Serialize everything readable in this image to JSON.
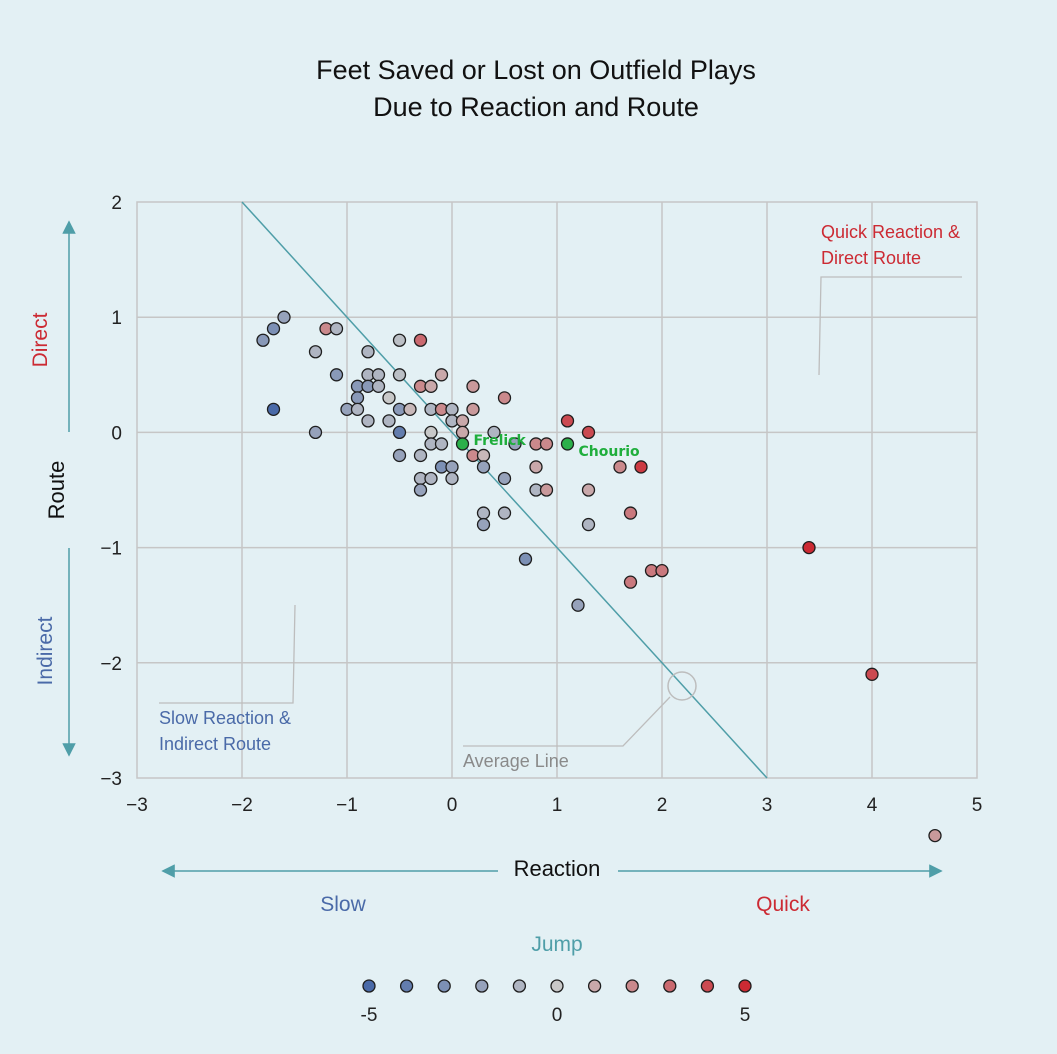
{
  "chart_data": {
    "type": "scatter",
    "title_line1": "Feet Saved or Lost on Outfield Plays",
    "title_line2": "Due to Reaction and Route",
    "xlabel": "Reaction",
    "ylabel": "Route",
    "xlim": [
      -3,
      5
    ],
    "ylim": [
      -3,
      2
    ],
    "xticks": [
      -3,
      -2,
      -1,
      0,
      1,
      2,
      3,
      4,
      5
    ],
    "yticks": [
      2,
      1,
      0,
      -1,
      -2,
      -3
    ],
    "grid": true,
    "colors": {
      "slow": "#4a6aa8",
      "quick": "#cc2a33",
      "teal": "#4f9ea8",
      "highlight": "#2bb04a",
      "grid": "#c6c6c6"
    },
    "y_pole_top": "Direct",
    "y_pole_bottom": "Indirect",
    "x_pole_left": "Slow",
    "x_pole_right": "Quick",
    "annotations": {
      "quick_line1": "Quick Reaction &",
      "quick_line2": "Direct Route",
      "slow_line1": "Slow Reaction &",
      "slow_line2": "Indirect Route",
      "average": "Average Line"
    },
    "average_line": {
      "x1": -2,
      "y1": 2,
      "x2": 3,
      "y2": -3
    },
    "legend": {
      "title": "Jump",
      "min_label": "-5",
      "mid_label": "0",
      "max_label": "5",
      "steps": [
        -5,
        -4,
        -3,
        -2,
        -1,
        0,
        1,
        2,
        3,
        4,
        5
      ]
    },
    "highlights": [
      {
        "label": "Frelick",
        "x": 0.1,
        "y": -0.1
      },
      {
        "label": "Chourio",
        "x": 1.1,
        "y": -0.1
      }
    ],
    "points": [
      {
        "x": -1.6,
        "y": 1.0,
        "jump": -2
      },
      {
        "x": -1.7,
        "y": 0.9,
        "jump": -3
      },
      {
        "x": -1.8,
        "y": 0.8,
        "jump": -2.5
      },
      {
        "x": -1.7,
        "y": 0.2,
        "jump": -5
      },
      {
        "x": -1.2,
        "y": 0.9,
        "jump": 2
      },
      {
        "x": -1.1,
        "y": 0.9,
        "jump": -1
      },
      {
        "x": -1.3,
        "y": 0.7,
        "jump": -1
      },
      {
        "x": -1.1,
        "y": 0.5,
        "jump": -2.5
      },
      {
        "x": -1.3,
        "y": 0.0,
        "jump": -2
      },
      {
        "x": -1.0,
        "y": 0.2,
        "jump": -2
      },
      {
        "x": -0.9,
        "y": 0.4,
        "jump": -2.5
      },
      {
        "x": -0.9,
        "y": 0.3,
        "jump": -2.5
      },
      {
        "x": -0.9,
        "y": 0.2,
        "jump": -1
      },
      {
        "x": -0.8,
        "y": 0.7,
        "jump": -1
      },
      {
        "x": -0.8,
        "y": 0.5,
        "jump": -1
      },
      {
        "x": -0.8,
        "y": 0.4,
        "jump": -2.5
      },
      {
        "x": -0.7,
        "y": 0.5,
        "jump": -1
      },
      {
        "x": -0.7,
        "y": 0.4,
        "jump": -1
      },
      {
        "x": -0.8,
        "y": 0.1,
        "jump": -1
      },
      {
        "x": -0.6,
        "y": 0.3,
        "jump": 0
      },
      {
        "x": -0.6,
        "y": 0.1,
        "jump": -1
      },
      {
        "x": -0.5,
        "y": 0.8,
        "jump": -0.5
      },
      {
        "x": -0.5,
        "y": 0.5,
        "jump": -0.5
      },
      {
        "x": -0.5,
        "y": 0.2,
        "jump": -2.5
      },
      {
        "x": -0.5,
        "y": 0.0,
        "jump": -4
      },
      {
        "x": -0.5,
        "y": -0.2,
        "jump": -2
      },
      {
        "x": -0.4,
        "y": 0.2,
        "jump": 0.5
      },
      {
        "x": -0.3,
        "y": 0.8,
        "jump": 3
      },
      {
        "x": -0.3,
        "y": 0.4,
        "jump": 2
      },
      {
        "x": -0.2,
        "y": 0.4,
        "jump": 1
      },
      {
        "x": -0.2,
        "y": 0.2,
        "jump": -1
      },
      {
        "x": -0.2,
        "y": 0.0,
        "jump": 0
      },
      {
        "x": -0.2,
        "y": -0.1,
        "jump": -1
      },
      {
        "x": -0.3,
        "y": -0.2,
        "jump": -1
      },
      {
        "x": -0.3,
        "y": -0.4,
        "jump": -1
      },
      {
        "x": -0.3,
        "y": -0.5,
        "jump": -2
      },
      {
        "x": -0.2,
        "y": -0.4,
        "jump": -1
      },
      {
        "x": -0.1,
        "y": 0.5,
        "jump": 1
      },
      {
        "x": -0.1,
        "y": 0.2,
        "jump": 2
      },
      {
        "x": -0.1,
        "y": -0.1,
        "jump": -1
      },
      {
        "x": -0.1,
        "y": -0.3,
        "jump": -3
      },
      {
        "x": 0.0,
        "y": 0.2,
        "jump": -1
      },
      {
        "x": 0.0,
        "y": 0.1,
        "jump": -1
      },
      {
        "x": 0.0,
        "y": -0.3,
        "jump": -2
      },
      {
        "x": 0.0,
        "y": -0.4,
        "jump": -1
      },
      {
        "x": 0.1,
        "y": 0.1,
        "jump": 1
      },
      {
        "x": 0.1,
        "y": 0.0,
        "jump": 1
      },
      {
        "x": 0.2,
        "y": 0.4,
        "jump": 1.5
      },
      {
        "x": 0.2,
        "y": 0.2,
        "jump": 1.5
      },
      {
        "x": 0.2,
        "y": -0.2,
        "jump": 2
      },
      {
        "x": 0.3,
        "y": -0.2,
        "jump": 0.5
      },
      {
        "x": 0.3,
        "y": -0.3,
        "jump": -2
      },
      {
        "x": 0.3,
        "y": -0.7,
        "jump": -1
      },
      {
        "x": 0.3,
        "y": -0.8,
        "jump": -2
      },
      {
        "x": 0.4,
        "y": 0.0,
        "jump": -1
      },
      {
        "x": 0.5,
        "y": 0.3,
        "jump": 2
      },
      {
        "x": 0.5,
        "y": -0.4,
        "jump": -2
      },
      {
        "x": 0.5,
        "y": -0.7,
        "jump": -1
      },
      {
        "x": 0.6,
        "y": -0.1,
        "jump": -2
      },
      {
        "x": 0.7,
        "y": -1.1,
        "jump": -3
      },
      {
        "x": 0.8,
        "y": -0.1,
        "jump": 2
      },
      {
        "x": 0.8,
        "y": -0.3,
        "jump": 1
      },
      {
        "x": 0.8,
        "y": -0.5,
        "jump": -1
      },
      {
        "x": 0.9,
        "y": -0.1,
        "jump": 2
      },
      {
        "x": 0.9,
        "y": -0.5,
        "jump": 1.5
      },
      {
        "x": 1.1,
        "y": 0.1,
        "jump": 4
      },
      {
        "x": 1.2,
        "y": -1.5,
        "jump": -2
      },
      {
        "x": 1.3,
        "y": 0.0,
        "jump": 4
      },
      {
        "x": 1.3,
        "y": -0.5,
        "jump": 1
      },
      {
        "x": 1.3,
        "y": -0.8,
        "jump": -1
      },
      {
        "x": 1.6,
        "y": -0.3,
        "jump": 2
      },
      {
        "x": 1.7,
        "y": -0.7,
        "jump": 2.5
      },
      {
        "x": 1.7,
        "y": -1.3,
        "jump": 2.5
      },
      {
        "x": 1.8,
        "y": -0.3,
        "jump": 4.5
      },
      {
        "x": 1.9,
        "y": -1.2,
        "jump": 2.5
      },
      {
        "x": 2.0,
        "y": -1.2,
        "jump": 2.5
      },
      {
        "x": 3.4,
        "y": -1.0,
        "jump": 5
      },
      {
        "x": 4.0,
        "y": -2.1,
        "jump": 4
      },
      {
        "x": 4.6,
        "y": -3.5,
        "jump": 1.5
      }
    ]
  }
}
